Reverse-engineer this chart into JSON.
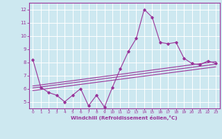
{
  "bg_color": "#cde8f0",
  "line_color": "#993399",
  "xlabel": "Windchill (Refroidissement éolien,°C)",
  "xlabel_color": "#993399",
  "xlim": [
    -0.5,
    23.5
  ],
  "ylim": [
    4.5,
    12.5
  ],
  "yticks": [
    5,
    6,
    7,
    8,
    9,
    10,
    11,
    12
  ],
  "xticks": [
    0,
    1,
    2,
    3,
    4,
    5,
    6,
    7,
    8,
    9,
    10,
    11,
    12,
    13,
    14,
    15,
    16,
    17,
    18,
    19,
    20,
    21,
    22,
    23
  ],
  "grid_color": "#ffffff",
  "series": [
    {
      "x": [
        0,
        1,
        2,
        3,
        4,
        5,
        6,
        7,
        8,
        9,
        10,
        11,
        12,
        13,
        14,
        15,
        16,
        17,
        18,
        19,
        20,
        21,
        22,
        23
      ],
      "y": [
        8.2,
        6.1,
        5.7,
        5.5,
        5.0,
        5.5,
        6.0,
        4.7,
        5.5,
        4.6,
        6.1,
        7.5,
        8.8,
        9.8,
        12.0,
        11.4,
        9.5,
        9.4,
        9.5,
        8.3,
        7.9,
        7.8,
        8.1,
        7.9
      ]
    },
    {
      "x": [
        0,
        23
      ],
      "y": [
        6.05,
        7.85
      ]
    },
    {
      "x": [
        0,
        23
      ],
      "y": [
        6.2,
        8.05
      ]
    },
    {
      "x": [
        0,
        23
      ],
      "y": [
        5.85,
        7.65
      ]
    }
  ]
}
